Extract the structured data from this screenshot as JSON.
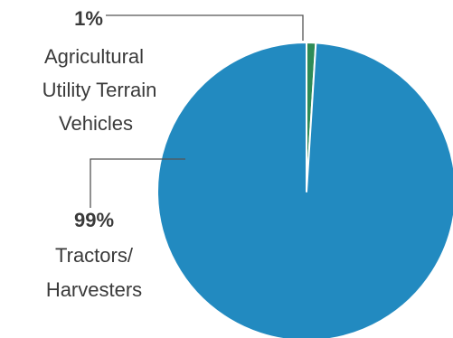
{
  "chart_data": {
    "type": "pie",
    "slices": [
      {
        "value": 1,
        "value_label": "1%",
        "label_lines": [
          "Agricultural",
          "Utility Terrain",
          "Vehicles"
        ],
        "color": "#2e8b57"
      },
      {
        "value": 99,
        "value_label": "99%",
        "label_lines": [
          "Tractors/",
          "Harvesters"
        ],
        "color": "#228ac0"
      }
    ],
    "title": "",
    "legend": "none",
    "start_angle_deg": 0,
    "direction": "clockwise",
    "separator_color": "#ffffff",
    "leader_line_color": "#555555"
  }
}
